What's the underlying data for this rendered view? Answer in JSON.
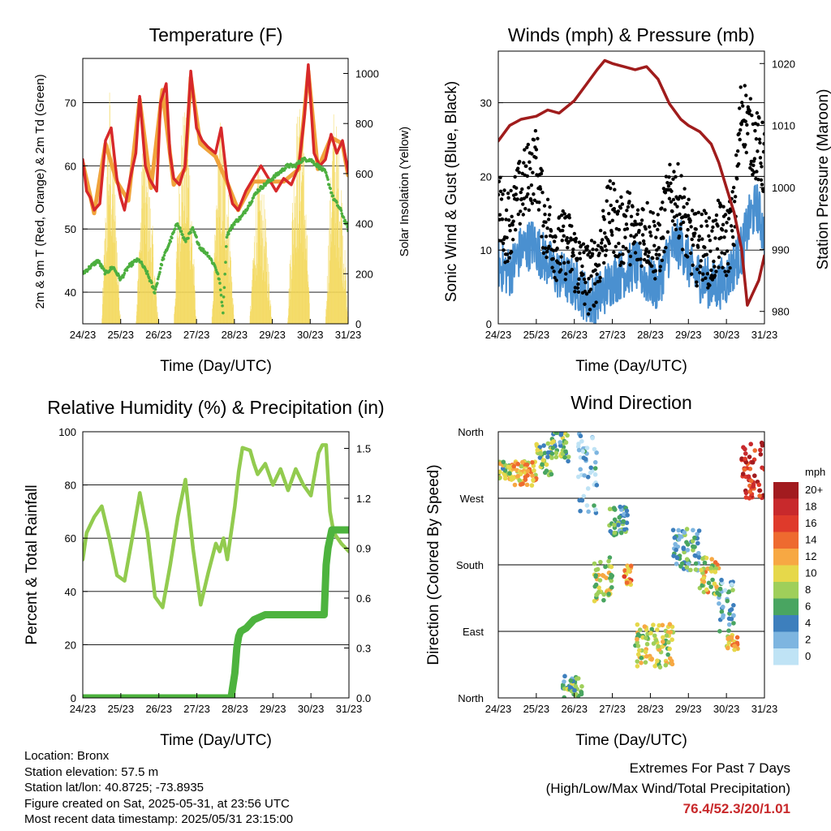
{
  "footer": {
    "location": "Location: Bronx",
    "elevation": "Station elevation: 57.5 m",
    "latlon": "Station lat/lon: 40.8725; -73.8935",
    "created": "Figure created on Sat, 2025-05-31, at 23:56 UTC",
    "recent": "Most recent data timestamp: 2025/05/31 23:15:00",
    "extremes_title": "Extremes For Past 7 Days",
    "extremes_sub": "(High/Low/Max Wind/Total Precipitation)",
    "extremes_values": "76.4/52.3/20/1.01"
  },
  "chart_data": [
    {
      "id": "temperature",
      "type": "line",
      "title": "Temperature (F)",
      "xlabel": "Time (Day/UTC)",
      "ylabel": "2m & 9m T (Red, Orange) & 2m Td (Green)",
      "y2label": "Solar Insolation (Yellow)",
      "x_ticks": [
        "24/23",
        "25/23",
        "26/23",
        "27/23",
        "28/23",
        "29/23",
        "30/23",
        "31/23"
      ],
      "xlim": [
        0,
        7
      ],
      "ylim": [
        35,
        77
      ],
      "y_ticks": [
        40,
        50,
        60,
        70
      ],
      "y2lim": [
        0,
        1060
      ],
      "y2_ticks": [
        0,
        200,
        400,
        600,
        800,
        1000
      ],
      "grid": "horizontal",
      "series": [
        {
          "name": "2m T",
          "color": "#d7282a",
          "x": [
            0,
            0.1,
            0.2,
            0.3,
            0.45,
            0.6,
            0.75,
            0.9,
            1.0,
            1.1,
            1.25,
            1.4,
            1.5,
            1.65,
            1.75,
            1.85,
            1.95,
            2.05,
            2.2,
            2.3,
            2.4,
            2.55,
            2.7,
            2.85,
            3.0,
            3.15,
            3.3,
            3.5,
            3.65,
            3.8,
            3.95,
            4.1,
            4.3,
            4.5,
            4.7,
            4.9,
            5.1,
            5.3,
            5.5,
            5.7,
            5.85,
            5.95,
            6.1,
            6.25,
            6.4,
            6.55,
            6.7,
            6.85,
            7.0
          ],
          "y": [
            61,
            56,
            55,
            53,
            54,
            64,
            66,
            58,
            55,
            53,
            58,
            62,
            71,
            60,
            58,
            57,
            56,
            70,
            73,
            62,
            58,
            57,
            60,
            75,
            66,
            64,
            63,
            62,
            66,
            58,
            54,
            53,
            56,
            58,
            60,
            58,
            56,
            58,
            57,
            60,
            68,
            76,
            62,
            60,
            61,
            65,
            62,
            64,
            59
          ]
        },
        {
          "name": "9m T",
          "color": "#f0a33b",
          "x": [
            0,
            0.3,
            0.6,
            0.9,
            1.2,
            1.5,
            1.8,
            2.1,
            2.4,
            2.7,
            2.85,
            3.1,
            3.5,
            3.8,
            4.1,
            4.5,
            4.9,
            5.3,
            5.7,
            5.95,
            6.2,
            6.55,
            6.85,
            7.0
          ],
          "y": [
            60.5,
            52.5,
            63.5,
            57.5,
            54.5,
            70.5,
            56.5,
            72,
            57,
            59.5,
            74,
            63.5,
            61.5,
            57.5,
            53,
            57.5,
            57.5,
            57.5,
            59.5,
            75,
            59.5,
            64.5,
            63.5,
            58.5
          ]
        },
        {
          "name": "2m Td",
          "color": "#4caf3f",
          "x": [
            0,
            0.2,
            0.4,
            0.6,
            0.8,
            1.0,
            1.2,
            1.4,
            1.5,
            1.7,
            1.9,
            2.1,
            2.3,
            2.5,
            2.7,
            2.9,
            3.1,
            3.3,
            3.5,
            3.6,
            3.7,
            3.8,
            4.0,
            4.2,
            4.4,
            4.6,
            4.8,
            5.0,
            5.2,
            5.4,
            5.6,
            5.8,
            6.0,
            6.2,
            6.4,
            6.6,
            6.8,
            7.0
          ],
          "y": [
            43,
            44,
            45,
            43,
            44,
            42,
            44,
            45,
            45,
            43,
            40,
            45,
            48,
            51,
            48,
            50,
            47,
            46,
            44,
            42,
            37,
            49,
            51,
            52,
            54,
            56,
            57,
            58,
            59,
            60,
            60,
            61,
            61,
            60,
            59,
            55,
            53,
            50
          ]
        },
        {
          "name": "Solar Insolation",
          "color": "#f3d85a",
          "axis": "y2",
          "x": [
            0,
            0.5,
            0.7,
            0.85,
            1.0,
            1.4,
            1.6,
            1.8,
            2.0,
            2.4,
            2.6,
            2.8,
            3.0,
            3.4,
            3.6,
            3.8,
            4.0,
            4.4,
            4.6,
            4.8,
            5.0,
            5.4,
            5.6,
            5.8,
            6.0,
            6.4,
            6.6,
            6.8,
            7.0
          ],
          "y": [
            0,
            0,
            1000,
            600,
            0,
            0,
            850,
            500,
            0,
            0,
            900,
            800,
            0,
            0,
            850,
            700,
            0,
            0,
            650,
            500,
            0,
            0,
            850,
            900,
            0,
            0,
            900,
            700,
            0
          ]
        }
      ]
    },
    {
      "id": "winds",
      "type": "scatter",
      "title": "Winds (mph) & Pressure (mb)",
      "xlabel": "Time (Day/UTC)",
      "ylabel": "Sonic Wind & Gust (Blue, Black)",
      "y2label": "Station Pressure (Maroon)",
      "x_ticks": [
        "24/23",
        "25/23",
        "26/23",
        "27/23",
        "28/23",
        "29/23",
        "30/23",
        "31/23"
      ],
      "xlim": [
        0,
        7
      ],
      "ylim": [
        0,
        37
      ],
      "y_ticks": [
        0,
        10,
        20,
        30
      ],
      "y2lim": [
        978,
        1022
      ],
      "y2_ticks": [
        980,
        990,
        1000,
        1010,
        1020
      ],
      "grid": "horizontal",
      "series": [
        {
          "name": "Wind",
          "color": "#4a90d0",
          "x": [
            0,
            0.3,
            0.6,
            0.9,
            1.2,
            1.5,
            1.8,
            2.1,
            2.4,
            2.7,
            3.0,
            3.3,
            3.6,
            3.9,
            4.2,
            4.5,
            4.8,
            5.1,
            5.4,
            5.7,
            6.0,
            6.2,
            6.4,
            6.6,
            6.8,
            7.0
          ],
          "y": [
            8,
            7,
            10,
            11,
            9,
            7,
            6,
            5,
            3,
            4,
            6,
            7,
            8,
            6,
            5,
            10,
            11,
            7,
            6,
            5,
            6,
            8,
            10,
            14,
            16,
            12
          ]
        },
        {
          "name": "Gust",
          "color": "#000000",
          "x": [
            0,
            0.2,
            0.4,
            0.6,
            0.8,
            1.0,
            1.2,
            1.4,
            1.6,
            1.8,
            2.0,
            2.2,
            2.4,
            2.6,
            2.8,
            3.0,
            3.2,
            3.4,
            3.6,
            3.8,
            4.0,
            4.2,
            4.4,
            4.6,
            4.8,
            5.0,
            5.2,
            5.4,
            5.6,
            5.8,
            6.0,
            6.2,
            6.4,
            6.6,
            6.8,
            7.0
          ],
          "y": [
            16,
            13,
            15,
            18,
            20,
            22,
            14,
            12,
            10,
            11,
            9,
            7,
            6,
            8,
            13,
            15,
            12,
            14,
            11,
            13,
            12,
            10,
            15,
            18,
            16,
            12,
            10,
            11,
            9,
            12,
            11,
            14,
            30,
            26,
            24,
            22
          ]
        },
        {
          "name": "Pressure",
          "color": "#a01c1c",
          "axis": "y2",
          "x": [
            0,
            0.3,
            0.6,
            1.0,
            1.3,
            1.6,
            2.0,
            2.3,
            2.6,
            2.8,
            3.0,
            3.3,
            3.6,
            3.9,
            4.2,
            4.5,
            4.8,
            5.0,
            5.3,
            5.6,
            5.8,
            6.0,
            6.2,
            6.4,
            6.55,
            6.7,
            6.85,
            7.0
          ],
          "y": [
            1007.5,
            1010,
            1011,
            1011.5,
            1012.5,
            1012,
            1014,
            1016.5,
            1019,
            1020.5,
            1020,
            1019.5,
            1019,
            1019.5,
            1017.5,
            1013.5,
            1011,
            1010,
            1009,
            1007,
            1004,
            1000,
            996,
            990,
            981,
            983,
            985,
            989
          ]
        }
      ]
    },
    {
      "id": "humidity",
      "type": "line",
      "title": "Relative Humidity (%) & Precipitation (in)",
      "xlabel": "Time (Day/UTC)",
      "ylabel": "Percent & Total Rainfall",
      "x_ticks": [
        "24/23",
        "25/23",
        "26/23",
        "27/23",
        "28/23",
        "29/23",
        "30/23",
        "31/23"
      ],
      "xlim": [
        0,
        7
      ],
      "ylim": [
        0,
        100
      ],
      "y_ticks": [
        0,
        20,
        40,
        60,
        80,
        100
      ],
      "y2lim": [
        0,
        1.6
      ],
      "y2_ticks": [
        "0.0",
        "0.3",
        "0.6",
        "0.9",
        "1.2",
        "1.5"
      ],
      "grid": "horizontal",
      "series": [
        {
          "name": "Relative Humidity",
          "color": "#92cb4f",
          "x": [
            0,
            0.1,
            0.3,
            0.5,
            0.7,
            0.9,
            1.1,
            1.3,
            1.5,
            1.7,
            1.9,
            2.1,
            2.3,
            2.5,
            2.7,
            2.9,
            3.1,
            3.3,
            3.5,
            3.6,
            3.7,
            3.8,
            4.0,
            4.1,
            4.2,
            4.4,
            4.5,
            4.6,
            4.8,
            5.0,
            5.2,
            5.4,
            5.6,
            5.8,
            6.0,
            6.2,
            6.3,
            6.4,
            6.5,
            6.6,
            6.8,
            7.0
          ],
          "y": [
            52,
            62,
            68,
            72,
            60,
            46,
            44,
            60,
            77,
            62,
            38,
            34,
            50,
            68,
            82,
            56,
            35,
            47,
            58,
            55,
            60,
            52,
            72,
            85,
            94,
            93,
            88,
            84,
            88,
            80,
            86,
            78,
            86,
            80,
            76,
            92,
            95,
            95,
            70,
            62,
            58,
            55
          ]
        },
        {
          "name": "Total Precipitation",
          "color": "#4db33e",
          "axis": "y2",
          "x": [
            0,
            1,
            2,
            3,
            3.9,
            4.0,
            4.05,
            4.1,
            4.15,
            4.3,
            4.5,
            4.8,
            5.0,
            5.5,
            6.0,
            6.2,
            6.35,
            6.4,
            6.45,
            6.55,
            6.7,
            7.0
          ],
          "y": [
            0,
            0,
            0,
            0,
            0,
            0.15,
            0.3,
            0.37,
            0.4,
            0.42,
            0.47,
            0.5,
            0.5,
            0.5,
            0.5,
            0.5,
            0.5,
            0.8,
            0.9,
            1.01,
            1.01,
            1.01
          ]
        }
      ]
    },
    {
      "id": "direction",
      "type": "scatter",
      "title": "Wind Direction",
      "xlabel": "Time (Day/UTC)",
      "ylabel": "Direction (Colored By Speed)",
      "x_ticks": [
        "24/23",
        "25/23",
        "26/23",
        "27/23",
        "28/23",
        "29/23",
        "30/23",
        "31/23"
      ],
      "xlim": [
        0,
        7
      ],
      "y_ticks": [
        "North",
        "East",
        "South",
        "West",
        "North"
      ],
      "ylim": [
        0,
        360
      ],
      "grid": "horizontal",
      "legend": {
        "title": "mph",
        "labels": [
          "20+",
          "18",
          "16",
          "14",
          "12",
          "10",
          "8",
          "6",
          "4",
          "2",
          "0"
        ],
        "position": "right"
      },
      "colorscale": [
        "#a21b1f",
        "#c8292c",
        "#df3a2b",
        "#ee6a2f",
        "#f7a843",
        "#e6d84a",
        "#9fcf5a",
        "#49a561",
        "#3d7fbd",
        "#7db5e0",
        "#bfe3f5"
      ],
      "clusters": [
        {
          "x0": 0,
          "x1": 0.35,
          "dir_lo": 295,
          "dir_hi": 320,
          "speed": 8
        },
        {
          "x0": 0.35,
          "x1": 1.0,
          "dir_lo": 285,
          "dir_hi": 320,
          "speed": 11
        },
        {
          "x0": 1.0,
          "x1": 1.4,
          "dir_lo": 300,
          "dir_hi": 345,
          "speed": 7
        },
        {
          "x0": 1.4,
          "x1": 1.85,
          "dir_lo": 320,
          "dir_hi": 360,
          "speed": 6
        },
        {
          "x0": 1.7,
          "x1": 2.2,
          "dir_lo": 0,
          "dir_hi": 30,
          "speed": 6
        },
        {
          "x0": 2.1,
          "x1": 2.6,
          "dir_lo": 250,
          "dir_hi": 360,
          "speed": 2
        },
        {
          "x0": 2.5,
          "x1": 3.0,
          "dir_lo": 130,
          "dir_hi": 190,
          "speed": 9
        },
        {
          "x0": 2.9,
          "x1": 3.4,
          "dir_lo": 220,
          "dir_hi": 260,
          "speed": 5
        },
        {
          "x0": 3.3,
          "x1": 3.5,
          "dir_lo": 150,
          "dir_hi": 180,
          "speed": 13
        },
        {
          "x0": 3.6,
          "x1": 4.6,
          "dir_lo": 40,
          "dir_hi": 100,
          "speed": 9
        },
        {
          "x0": 4.6,
          "x1": 5.3,
          "dir_lo": 170,
          "dir_hi": 230,
          "speed": 5
        },
        {
          "x0": 5.3,
          "x1": 5.8,
          "dir_lo": 140,
          "dir_hi": 190,
          "speed": 10
        },
        {
          "x0": 5.8,
          "x1": 6.2,
          "dir_lo": 90,
          "dir_hi": 160,
          "speed": 4
        },
        {
          "x0": 6.0,
          "x1": 6.3,
          "dir_lo": 65,
          "dir_hi": 85,
          "speed": 12
        },
        {
          "x0": 6.4,
          "x1": 7.0,
          "dir_lo": 270,
          "dir_hi": 345,
          "speed": 17
        }
      ]
    }
  ]
}
